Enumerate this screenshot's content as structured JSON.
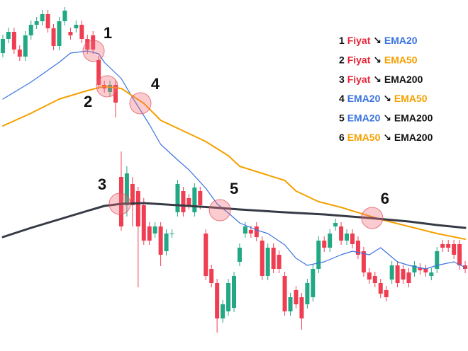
{
  "chart_data": {
    "type": "candlestick",
    "xlim": [
      -0.5,
      82.5
    ],
    "ylim": [
      0,
      496
    ],
    "candles": {
      "name": "Fiyat",
      "color": "#e8273a",
      "up_color": "#22a884",
      "down_color": "#ef3d52",
      "open": [
        421,
        441,
        451,
        426,
        416,
        446,
        461,
        466,
        476,
        456,
        431,
        466,
        451,
        456,
        461,
        441,
        446,
        411,
        376,
        366,
        376,
        246,
        206,
        236,
        226,
        206,
        176,
        166,
        176,
        141,
        166,
        196,
        226,
        216,
        196,
        226,
        166,
        116,
        96,
        46,
        56,
        61,
        126,
        166,
        171,
        176,
        156,
        106,
        146,
        136,
        106,
        56,
        86,
        76,
        66,
        76,
        116,
        156,
        146,
        176,
        176,
        156,
        166,
        156,
        141,
        111,
        106,
        96,
        86,
        101,
        121,
        116,
        111,
        111,
        118,
        116,
        106,
        116,
        151,
        151,
        151,
        151,
        121
      ],
      "high": [
        447,
        457,
        457,
        432,
        452,
        467,
        472,
        482,
        482,
        462,
        472,
        486,
        457,
        467,
        467,
        447,
        452,
        417,
        382,
        382,
        382,
        282,
        261,
        246,
        232,
        216,
        182,
        182,
        182,
        172,
        172,
        242,
        232,
        222,
        237,
        232,
        172,
        122,
        102,
        72,
        102,
        112,
        152,
        182,
        177,
        182,
        162,
        152,
        152,
        142,
        112,
        82,
        92,
        82,
        102,
        122,
        162,
        162,
        172,
        187,
        182,
        172,
        172,
        162,
        147,
        117,
        112,
        102,
        92,
        127,
        127,
        122,
        117,
        127,
        124,
        122,
        117,
        147,
        157,
        157,
        157,
        157,
        127
      ],
      "low": [
        415,
        435,
        420,
        410,
        410,
        440,
        455,
        460,
        450,
        425,
        425,
        460,
        440,
        450,
        435,
        420,
        420,
        370,
        365,
        360,
        330,
        170,
        190,
        176,
        90,
        150,
        150,
        160,
        120,
        135,
        160,
        190,
        190,
        200,
        190,
        200,
        100,
        90,
        26,
        40,
        50,
        55,
        120,
        160,
        160,
        155,
        100,
        100,
        110,
        110,
        50,
        50,
        60,
        30,
        60,
        70,
        110,
        140,
        140,
        170,
        150,
        150,
        145,
        130,
        105,
        95,
        90,
        75,
        70,
        95,
        90,
        95,
        90,
        105,
        108,
        105,
        100,
        110,
        140,
        140,
        130,
        115,
        110
      ],
      "close": [
        441,
        451,
        426,
        416,
        446,
        461,
        466,
        476,
        456,
        431,
        466,
        481,
        446,
        461,
        441,
        426,
        426,
        376,
        371,
        376,
        351,
        176,
        251,
        206,
        176,
        156,
        156,
        176,
        136,
        166,
        166,
        236,
        196,
        206,
        231,
        206,
        106,
        96,
        46,
        66,
        96,
        106,
        146,
        176,
        166,
        161,
        106,
        146,
        116,
        116,
        56,
        76,
        66,
        46,
        96,
        116,
        156,
        146,
        166,
        181,
        156,
        166,
        151,
        136,
        111,
        101,
        96,
        81,
        76,
        121,
        96,
        101,
        96,
        121,
        114,
        111,
        111,
        141,
        146,
        146,
        136,
        121,
        116
      ]
    },
    "series": [
      {
        "name": "EMA20",
        "color": "#3b73e0",
        "x": [
          0,
          5,
          10,
          12,
          15,
          17,
          18,
          21,
          23,
          26,
          28,
          31,
          33,
          36,
          38,
          40,
          42,
          45,
          47,
          50,
          52,
          54,
          57,
          60,
          62,
          65,
          67,
          70,
          72,
          75,
          77,
          80,
          82
        ],
        "values": [
          356,
          380,
          408,
          421,
          424,
          420,
          408,
          385,
          358,
          320,
          292,
          270,
          256,
          230,
          208,
          195,
          181,
          171,
          166,
          150,
          131,
          121,
          126,
          136,
          141,
          136,
          146,
          126,
          121,
          116,
          121,
          126,
          118
        ]
      },
      {
        "name": "EMA50",
        "color": "#f5a000",
        "x": [
          0,
          5,
          10,
          15,
          18,
          21,
          25,
          28,
          32,
          36,
          40,
          42,
          46,
          50,
          52,
          56,
          60,
          62,
          67,
          72,
          77,
          82
        ],
        "values": [
          318,
          336,
          356,
          368,
          374,
          371,
          350,
          326,
          311,
          296,
          276,
          261,
          251,
          241,
          226,
          211,
          203,
          198,
          186,
          176,
          166,
          158
        ]
      },
      {
        "name": "EMA200",
        "color": "#363a45",
        "x": [
          0,
          5,
          10,
          15,
          18,
          21,
          25,
          31,
          37,
          42,
          50,
          57,
          65,
          72,
          77,
          82
        ],
        "values": [
          161,
          174,
          186,
          198,
          205,
          208,
          209,
          206,
          203,
          200,
          196,
          193,
          188,
          183,
          178,
          174
        ]
      }
    ],
    "annotations": [
      {
        "label": "1",
        "x": 16.1,
        "y": 424
      },
      {
        "label": "2",
        "x": 18.5,
        "y": 374
      },
      {
        "label": "3",
        "x": 20.75,
        "y": 208
      },
      {
        "label": "4",
        "x": 24.4,
        "y": 350
      },
      {
        "label": "5",
        "x": 38.5,
        "y": 199
      },
      {
        "label": "6",
        "x": 65.5,
        "y": 188
      }
    ],
    "legend": {
      "arrow": "↘",
      "entries": [
        {
          "number": "1",
          "from": "Fiyat",
          "to": "EMA20"
        },
        {
          "number": "2",
          "from": "Fiyat",
          "to": "EMA50"
        },
        {
          "number": "3",
          "from": "Fiyat",
          "to": "EMA200"
        },
        {
          "number": "4",
          "from": "EMA20",
          "to": "EMA50"
        },
        {
          "number": "5",
          "from": "EMA20",
          "to": "EMA200"
        },
        {
          "number": "6",
          "from": "EMA50",
          "to": "EMA200"
        }
      ]
    }
  }
}
